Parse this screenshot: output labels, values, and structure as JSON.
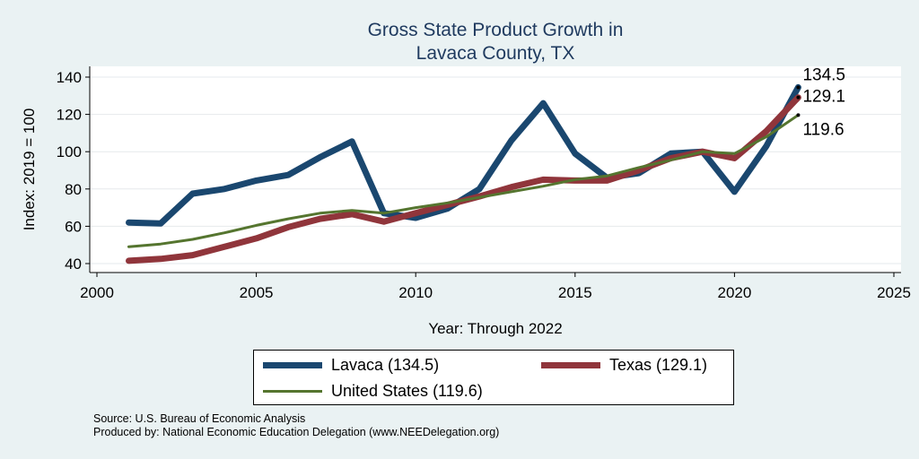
{
  "chart_data": {
    "type": "line",
    "title": [
      "Gross State Product Growth in",
      "Lavaca County, TX"
    ],
    "xlabel": "Year: Through 2022",
    "ylabel": "Index: 2019 = 100",
    "xlim": [
      2000,
      2025
    ],
    "ylim": [
      40,
      140
    ],
    "xticks": [
      2000,
      2005,
      2010,
      2015,
      2020,
      2025
    ],
    "yticks": [
      40,
      60,
      80,
      100,
      120,
      140
    ],
    "grid": true,
    "legend_position": "bottom",
    "x": [
      2001,
      2002,
      2003,
      2004,
      2005,
      2006,
      2007,
      2008,
      2009,
      2010,
      2011,
      2012,
      2013,
      2014,
      2015,
      2016,
      2017,
      2018,
      2019,
      2020,
      2021,
      2022
    ],
    "series": [
      {
        "name": "Lavaca",
        "legend_label": "Lavaca  (134.5)",
        "end_label": "134.5",
        "color": "#1a476f",
        "values": [
          62,
          61.5,
          77.5,
          80,
          84.5,
          87.5,
          97,
          105.5,
          67,
          64.5,
          69.5,
          80,
          106,
          126,
          99,
          86,
          88.5,
          99,
          100,
          78.5,
          103,
          134.5
        ]
      },
      {
        "name": "Texas",
        "legend_label": "Texas (129.1)",
        "end_label": "129.1",
        "color": "#90353b",
        "values": [
          41.5,
          42.5,
          44.5,
          49,
          53.5,
          59.5,
          64,
          66.5,
          62.5,
          67,
          71.5,
          76,
          81,
          85,
          84.5,
          84.5,
          90,
          96.5,
          100,
          96.5,
          111,
          129.1
        ]
      },
      {
        "name": "United States",
        "legend_label": "United States (119.6)",
        "end_label": "119.6",
        "color": "#55752f",
        "values": [
          49,
          50.5,
          53,
          56.5,
          60.5,
          64,
          67,
          68.5,
          67,
          70,
          72.5,
          75.5,
          78.5,
          81.5,
          85,
          87,
          91.5,
          95.5,
          100,
          99,
          108,
          119.6
        ]
      }
    ]
  },
  "source_line1": "Source: U.S. Bureau of Economic Analysis",
  "source_line2": "Produced by: National Economic Education Delegation (www.NEEDelegation.org)"
}
